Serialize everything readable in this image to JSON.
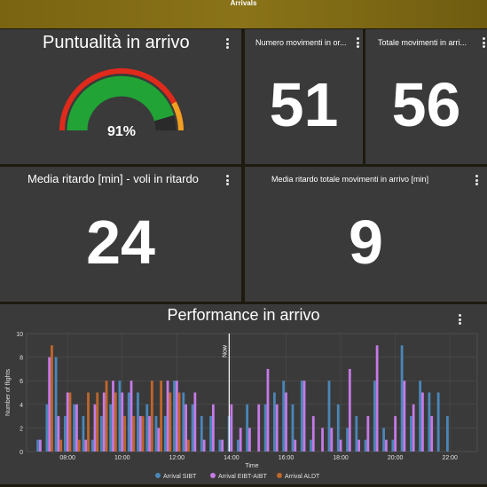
{
  "header": {
    "title": "Arrivals"
  },
  "gauge": {
    "title": "Puntualità in arrivo",
    "value": 91,
    "value_label": "91%"
  },
  "stat_ordered": {
    "title": "Numero movimenti in or...",
    "value": "51"
  },
  "stat_total": {
    "title": "Totale movimenti in arri...",
    "value": "56"
  },
  "stat_delay_late": {
    "title": "Media ritardo [min] - voli in ritardo",
    "value": "24"
  },
  "stat_delay_all": {
    "title": "Media ritardo totale movimenti in arrivo [min]",
    "value": "9"
  },
  "performance": {
    "title": "Performance in arrivo"
  },
  "colors": {
    "sibt": "#4a86b8",
    "eibt": "#c57ae6",
    "aldt": "#c0662a",
    "gauge_green": "#21a336",
    "gauge_red": "#e02a1c",
    "gauge_orange": "#f0a020"
  },
  "chart_data": {
    "type": "bar",
    "title": "Performance in arrivo",
    "xlabel": "Time",
    "ylabel": "Number of flights",
    "ylim": [
      0,
      10
    ],
    "yticks": [
      0,
      2,
      4,
      6,
      8,
      10
    ],
    "x_ticks": [
      "08:00",
      "10:00",
      "12:00",
      "14:00",
      "16:00",
      "18:00",
      "20:00",
      "22:00"
    ],
    "now_label": "Now",
    "now_time": "13:55",
    "legend_position": "bottom",
    "series": [
      {
        "name": "Arrival SIBT",
        "color": "#4a86b8",
        "points": [
          [
            "07:00",
            1
          ],
          [
            "07:20",
            4
          ],
          [
            "07:40",
            8
          ],
          [
            "08:00",
            3
          ],
          [
            "08:20",
            4
          ],
          [
            "08:40",
            3
          ],
          [
            "09:00",
            1
          ],
          [
            "09:20",
            3
          ],
          [
            "09:40",
            4
          ],
          [
            "10:00",
            6
          ],
          [
            "10:20",
            5
          ],
          [
            "10:40",
            5
          ],
          [
            "11:00",
            4
          ],
          [
            "11:20",
            3
          ],
          [
            "11:40",
            3
          ],
          [
            "12:00",
            6
          ],
          [
            "12:20",
            5
          ],
          [
            "12:40",
            4
          ],
          [
            "13:00",
            3
          ],
          [
            "13:20",
            3
          ],
          [
            "13:40",
            1
          ],
          [
            "14:00",
            3
          ],
          [
            "14:20",
            1
          ],
          [
            "14:40",
            4
          ],
          [
            "15:20",
            4
          ],
          [
            "15:40",
            5
          ],
          [
            "16:00",
            6
          ],
          [
            "16:20",
            4
          ],
          [
            "16:40",
            6
          ],
          [
            "17:00",
            1
          ],
          [
            "17:40",
            6
          ],
          [
            "18:00",
            4
          ],
          [
            "18:20",
            2
          ],
          [
            "18:40",
            3
          ],
          [
            "19:00",
            1
          ],
          [
            "19:20",
            6
          ],
          [
            "19:40",
            2
          ],
          [
            "20:00",
            1
          ],
          [
            "20:20",
            9
          ],
          [
            "20:40",
            3
          ],
          [
            "21:00",
            6
          ],
          [
            "21:20",
            5
          ],
          [
            "21:40",
            5
          ],
          [
            "22:00",
            3
          ]
        ]
      },
      {
        "name": "Arrival EIBT-AIBT",
        "color": "#c57ae6",
        "points": [
          [
            "07:00",
            1
          ],
          [
            "07:20",
            8
          ],
          [
            "07:40",
            3
          ],
          [
            "08:00",
            5
          ],
          [
            "08:20",
            4
          ],
          [
            "08:40",
            1
          ],
          [
            "09:00",
            4
          ],
          [
            "09:20",
            5
          ],
          [
            "09:40",
            6
          ],
          [
            "10:00",
            5
          ],
          [
            "10:20",
            6
          ],
          [
            "10:40",
            3
          ],
          [
            "11:00",
            3
          ],
          [
            "11:20",
            2
          ],
          [
            "11:40",
            6
          ],
          [
            "12:00",
            6
          ],
          [
            "12:20",
            4
          ],
          [
            "12:40",
            5
          ],
          [
            "13:00",
            1
          ],
          [
            "13:20",
            4
          ],
          [
            "13:40",
            1
          ],
          [
            "14:00",
            4
          ],
          [
            "14:20",
            2
          ],
          [
            "14:40",
            2
          ],
          [
            "15:00",
            4
          ],
          [
            "15:20",
            7
          ],
          [
            "15:40",
            4
          ],
          [
            "16:00",
            5
          ],
          [
            "16:20",
            1
          ],
          [
            "16:40",
            6
          ],
          [
            "17:00",
            3
          ],
          [
            "17:20",
            2
          ],
          [
            "17:40",
            2
          ],
          [
            "18:00",
            1
          ],
          [
            "18:20",
            7
          ],
          [
            "18:40",
            1
          ],
          [
            "19:00",
            3
          ],
          [
            "19:20",
            9
          ],
          [
            "19:40",
            1
          ],
          [
            "20:00",
            3
          ],
          [
            "20:20",
            6
          ],
          [
            "20:40",
            4
          ],
          [
            "21:00",
            5
          ],
          [
            "21:20",
            3
          ]
        ]
      },
      {
        "name": "Arrival ALDT",
        "color": "#c0662a",
        "points": [
          [
            "07:20",
            9
          ],
          [
            "07:40",
            1
          ],
          [
            "08:00",
            5
          ],
          [
            "08:20",
            1
          ],
          [
            "08:40",
            5
          ],
          [
            "09:00",
            5
          ],
          [
            "09:20",
            6
          ],
          [
            "09:40",
            5
          ],
          [
            "10:00",
            3
          ],
          [
            "10:20",
            3
          ],
          [
            "10:40",
            3
          ],
          [
            "11:00",
            6
          ],
          [
            "11:20",
            6
          ],
          [
            "11:40",
            5
          ],
          [
            "12:00",
            5
          ],
          [
            "12:20",
            1
          ]
        ]
      }
    ]
  }
}
